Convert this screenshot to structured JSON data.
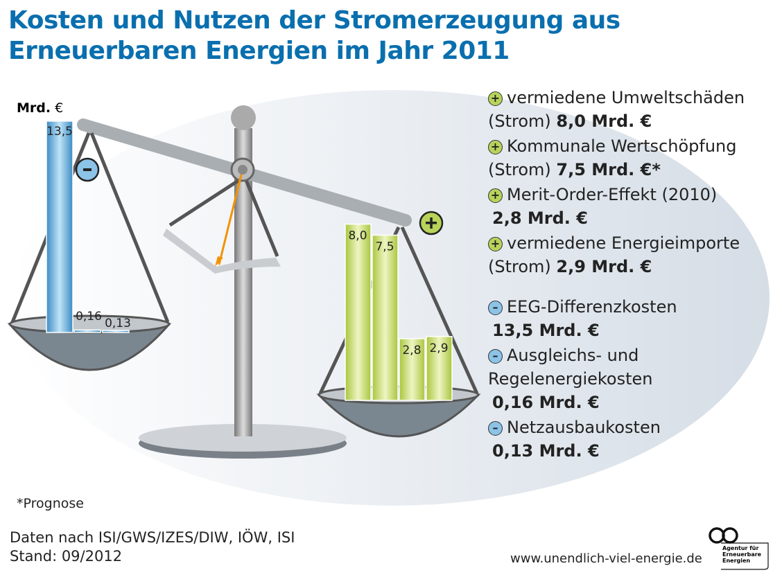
{
  "title_line1": "Kosten und Nutzen der Stromerzeugung aus",
  "title_line2": "Erneuerbaren Energien im Jahr 2011",
  "unit_bold": "Mrd.",
  "unit_symbol": "€",
  "colors": {
    "title": "#0a6fae",
    "cost_bars": "#4f9fd3",
    "benefit_bars": "#c4dc6a",
    "scale": "#9aa0a6",
    "pointer": "#f39200"
  },
  "chart_data": {
    "type": "bar",
    "unit": "Mrd. €",
    "cost_side": {
      "sign": "-",
      "categories": [
        "EEG-Differenzkosten",
        "Ausgleichs- und Regelenergiekosten",
        "Netzausbaukosten"
      ],
      "values": [
        13.5,
        0.16,
        0.13
      ],
      "labels": [
        "13,5",
        "0,16",
        "0,13"
      ]
    },
    "benefit_side": {
      "sign": "+",
      "categories": [
        "vermiedene Umweltschäden (Strom)",
        "Kommunale Wertschöpfung (Strom)",
        "Merit-Order-Effekt (2010)",
        "vermiedene Energieimporte (Strom)"
      ],
      "values": [
        8.0,
        7.5,
        2.8,
        2.9
      ],
      "labels": [
        "8,0",
        "7,5",
        "2,8",
        "2,9"
      ]
    }
  },
  "legend": [
    {
      "sign": "+",
      "line1": "vermiedene Umweltschäden",
      "line2_pre": "(Strom) ",
      "value": "8,0 Mrd. €"
    },
    {
      "sign": "+",
      "line1": "Kommunale Wertschöpfung",
      "line2_pre": "(Strom) ",
      "value": "7,5 Mrd. €*"
    },
    {
      "sign": "+",
      "line1": "Merit-Order-Effekt (2010)",
      "line2_pre": "",
      "value": "2,8 Mrd. €"
    },
    {
      "sign": "+",
      "line1": "vermiedene Energieimporte",
      "line2_pre": "(Strom) ",
      "value": "2,9 Mrd. €"
    },
    {
      "sign": "–",
      "line1": "EEG-Differenzkosten",
      "line2_pre": "",
      "value": "13,5 Mrd. €"
    },
    {
      "sign": "–",
      "line1": "Ausgleichs- und",
      "line1b": "Regelenergiekosten",
      "line2_pre": "",
      "value": "0,16 Mrd. €"
    },
    {
      "sign": "–",
      "line1": "Netzausbaukosten",
      "line2_pre": "",
      "value": "0,13 Mrd. €"
    }
  ],
  "footnote": "*Prognose",
  "source": "Daten nach ISI/GWS/IZES/DIW, IÖW, ISI",
  "date": "Stand: 09/2012",
  "url": "www.unendlich-viel-energie.de",
  "logo_text": "Agentur für Erneuerbare Energien"
}
